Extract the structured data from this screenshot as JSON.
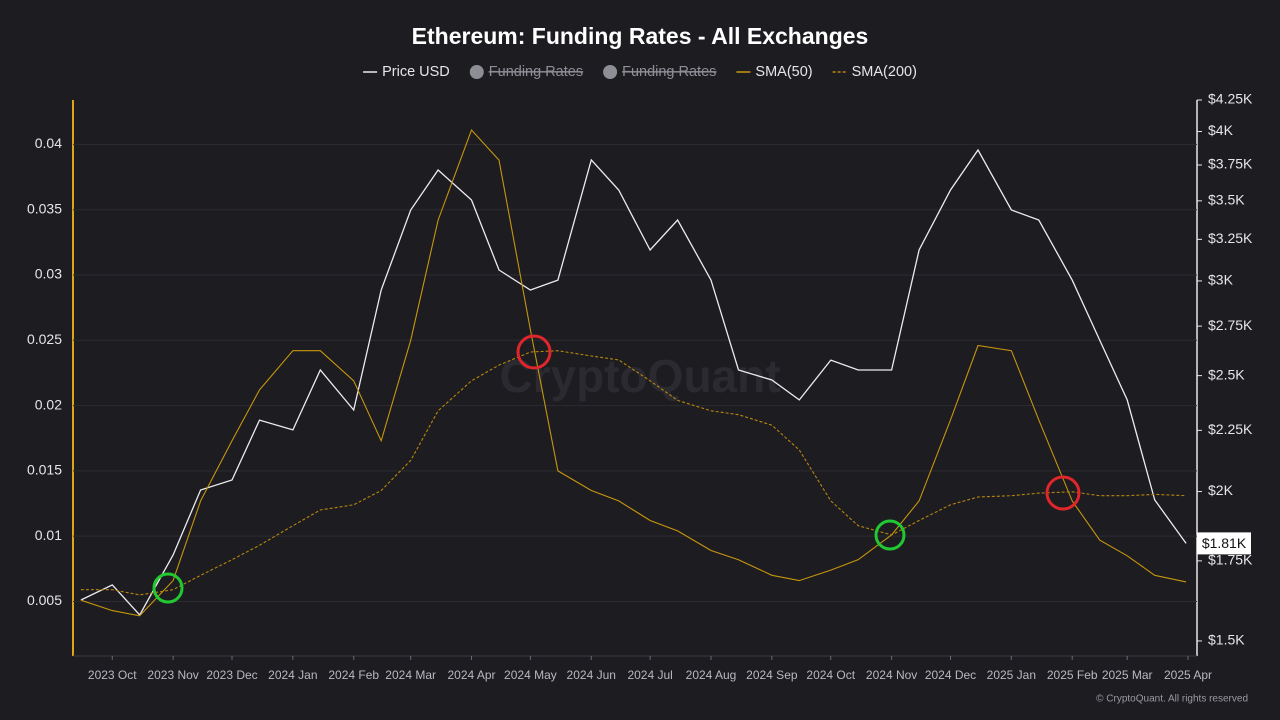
{
  "chart_data": {
    "type": "line",
    "title": "Ethereum: Funding Rates - All Exchanges",
    "watermark": "CryptoQuant",
    "footer": "© CryptoQuant. All rights reserved",
    "x": [
      "2023-09-15",
      "2023-10-01",
      "2023-10-15",
      "2023-11-01",
      "2023-11-15",
      "2023-12-01",
      "2023-12-15",
      "2024-01-01",
      "2024-01-15",
      "2024-02-01",
      "2024-02-15",
      "2024-03-01",
      "2024-03-15",
      "2024-04-01",
      "2024-04-15",
      "2024-05-01",
      "2024-05-15",
      "2024-06-01",
      "2024-06-15",
      "2024-07-01",
      "2024-07-15",
      "2024-08-01",
      "2024-08-15",
      "2024-09-01",
      "2024-09-15",
      "2024-10-01",
      "2024-10-15",
      "2024-11-01",
      "2024-11-15",
      "2024-12-01",
      "2024-12-15",
      "2025-01-01",
      "2025-01-15",
      "2025-02-01",
      "2025-02-15",
      "2025-03-01",
      "2025-03-15",
      "2025-03-31"
    ],
    "xlim": [
      "2023-09-11",
      "2025-04-02"
    ],
    "xticks": [
      {
        "value": "2023-10-01",
        "label": "2023 Oct"
      },
      {
        "value": "2023-11-01",
        "label": "2023 Nov"
      },
      {
        "value": "2023-12-01",
        "label": "2023 Dec"
      },
      {
        "value": "2024-01-01",
        "label": "2024 Jan"
      },
      {
        "value": "2024-02-01",
        "label": "2024 Feb"
      },
      {
        "value": "2024-03-01",
        "label": "2024 Mar"
      },
      {
        "value": "2024-04-01",
        "label": "2024 Apr"
      },
      {
        "value": "2024-05-01",
        "label": "2024 May"
      },
      {
        "value": "2024-06-01",
        "label": "2024 Jun"
      },
      {
        "value": "2024-07-01",
        "label": "2024 Jul"
      },
      {
        "value": "2024-08-01",
        "label": "2024 Aug"
      },
      {
        "value": "2024-09-01",
        "label": "2024 Sep"
      },
      {
        "value": "2024-10-01",
        "label": "2024 Oct"
      },
      {
        "value": "2024-11-01",
        "label": "2024 Nov"
      },
      {
        "value": "2024-12-01",
        "label": "2024 Dec"
      },
      {
        "value": "2025-01-01",
        "label": "2025 Jan"
      },
      {
        "value": "2025-02-01",
        "label": "2025 Feb"
      },
      {
        "value": "2025-03-01",
        "label": "2025 Mar"
      },
      {
        "value": "2025-04-01",
        "label": "2025 Apr"
      }
    ],
    "ylim": [
      0.0009,
      0.0434
    ],
    "yticks": [
      0.005,
      0.01,
      0.015,
      0.02,
      0.025,
      0.03,
      0.035,
      0.04
    ],
    "y2lim": [
      1460,
      4250
    ],
    "y2log": true,
    "y2ticks": [
      {
        "value": 1500,
        "label": "$1.5K"
      },
      {
        "value": 1750,
        "label": "$1.75K"
      },
      {
        "value": 2000,
        "label": "$2K"
      },
      {
        "value": 2250,
        "label": "$2.25K"
      },
      {
        "value": 2500,
        "label": "$2.5K"
      },
      {
        "value": 2750,
        "label": "$2.75K"
      },
      {
        "value": 3000,
        "label": "$3K"
      },
      {
        "value": 3250,
        "label": "$3.25K"
      },
      {
        "value": 3500,
        "label": "$3.5K"
      },
      {
        "value": 3750,
        "label": "$3.75K"
      },
      {
        "value": 4000,
        "label": "$4K"
      },
      {
        "value": 4250,
        "label": "$4.25K"
      }
    ],
    "grid": true,
    "price_tag": {
      "value": 1810,
      "label": "$1.81K"
    },
    "series": [
      {
        "name": "Price USD",
        "color": "#ececf0",
        "axis": "y2",
        "dash": false,
        "values": [
          1623,
          1671,
          1577,
          1770,
          2006,
          2045,
          2295,
          2252,
          2527,
          2340,
          2948,
          3439,
          3714,
          3506,
          3064,
          2948,
          3005,
          3787,
          3574,
          3184,
          3373,
          3005,
          2527,
          2479,
          2386,
          2576,
          2527,
          2527,
          3184,
          3574,
          3860,
          3439,
          3373,
          3005,
          2677,
          2386,
          1968,
          1810
        ]
      },
      {
        "name": "Funding Rates",
        "color": "#8e8e96",
        "visible": false
      },
      {
        "name": "Funding Rates",
        "color": "#8e8e96",
        "visible": false
      },
      {
        "name": "SMA(50)",
        "color": "#c8960c",
        "dash": false,
        "values": [
          0.0051,
          0.0043,
          0.0039,
          0.0066,
          0.0127,
          0.0173,
          0.0212,
          0.0242,
          0.0242,
          0.0219,
          0.0173,
          0.025,
          0.0342,
          0.0411,
          0.0388,
          0.0258,
          0.015,
          0.0135,
          0.0127,
          0.0112,
          0.0104,
          0.0089,
          0.0082,
          0.007,
          0.0066,
          0.0074,
          0.0082,
          0.0101,
          0.0127,
          0.0189,
          0.0246,
          0.0242,
          0.0189,
          0.0127,
          0.0097,
          0.0085,
          0.007,
          0.0065
        ]
      },
      {
        "name": "SMA(200)",
        "color": "#b8860b",
        "dash": true,
        "values": [
          0.0059,
          0.0059,
          0.0055,
          0.0059,
          0.007,
          0.0082,
          0.0093,
          0.0108,
          0.012,
          0.0124,
          0.0135,
          0.0158,
          0.0196,
          0.0219,
          0.0231,
          0.0241,
          0.0242,
          0.0238,
          0.0235,
          0.0219,
          0.0204,
          0.0196,
          0.0193,
          0.0185,
          0.0166,
          0.0127,
          0.0108,
          0.0101,
          0.0112,
          0.0124,
          0.013,
          0.0131,
          0.0133,
          0.0134,
          0.0131,
          0.0131,
          0.0132,
          0.0131
        ]
      }
    ]
  }
}
